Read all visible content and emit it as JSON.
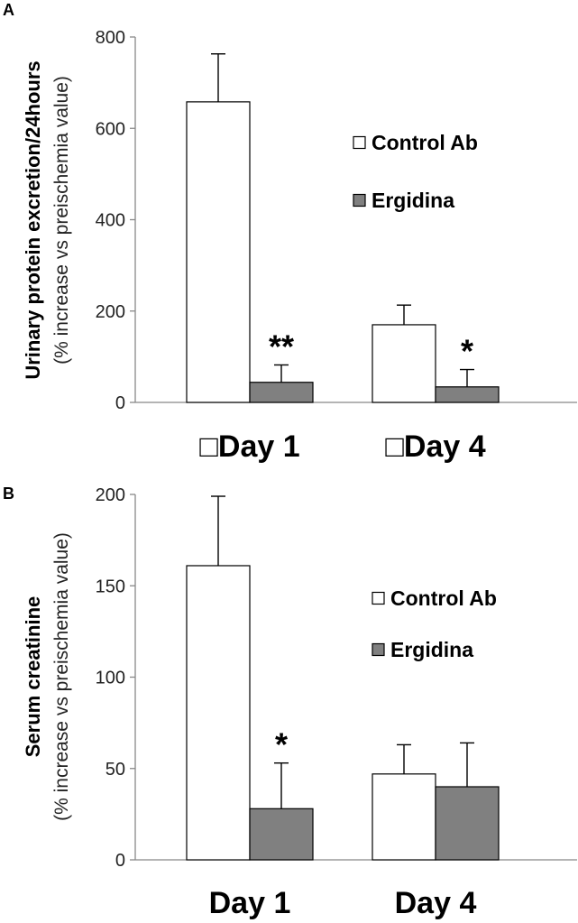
{
  "chart_data": [
    {
      "panel_label": "A",
      "type": "bar",
      "ylabel_line1": "Urinary protein excretion/24hours",
      "ylabel_line2": "(% increase vs preischemia value)",
      "categories": [
        "□Day 1",
        "□Day 4"
      ],
      "series": [
        {
          "name": "Control Ab",
          "color": "#ffffff",
          "values": [
            658,
            170
          ],
          "errors": [
            105,
            43
          ]
        },
        {
          "name": "Ergidina",
          "color": "#808080",
          "values": [
            44,
            34
          ],
          "errors": [
            38,
            38
          ]
        }
      ],
      "significance": [
        {
          "category": 0,
          "series": 1,
          "label": "**"
        },
        {
          "category": 1,
          "series": 1,
          "label": "*"
        }
      ],
      "ylim": [
        0,
        800
      ],
      "yticks": [
        0,
        200,
        400,
        600,
        800
      ],
      "legend_position": "right",
      "grid": false
    },
    {
      "panel_label": "B",
      "type": "bar",
      "ylabel_line1": "Serum creatinine",
      "ylabel_line2": "(% increase vs preischemia value)",
      "categories": [
        "Day 1",
        "Day 4"
      ],
      "series": [
        {
          "name": "Control Ab",
          "color": "#ffffff",
          "values": [
            161,
            47
          ],
          "errors": [
            38,
            16
          ]
        },
        {
          "name": "Ergidina",
          "color": "#808080",
          "values": [
            28,
            40
          ],
          "errors": [
            25,
            24
          ]
        }
      ],
      "significance": [
        {
          "category": 0,
          "series": 1,
          "label": "*"
        }
      ],
      "ylim": [
        0,
        200
      ],
      "yticks": [
        0,
        50,
        100,
        150,
        200
      ],
      "legend_position": "right",
      "grid": false
    }
  ]
}
